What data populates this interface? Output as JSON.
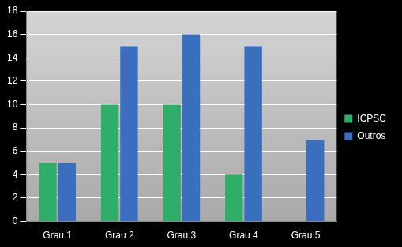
{
  "chart_data": {
    "type": "bar",
    "categories": [
      "Grau 1",
      "Grau 2",
      "Grau 3",
      "Grau 4",
      "Grau 5"
    ],
    "series": [
      {
        "name": "ICPSC",
        "color": "#2fae6a",
        "values": [
          5,
          10,
          10,
          4,
          null
        ]
      },
      {
        "name": "Outros",
        "color": "#3a6fc0",
        "values": [
          5,
          15,
          16,
          15,
          7
        ]
      }
    ],
    "ylim": [
      0,
      18
    ],
    "yticks": [
      0,
      2,
      4,
      6,
      8,
      10,
      12,
      14,
      16,
      18
    ],
    "grid": true,
    "legend": "right"
  }
}
